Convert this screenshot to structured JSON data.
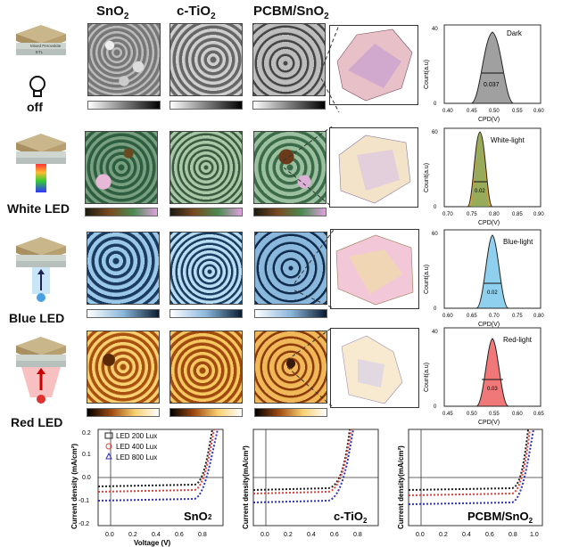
{
  "columns": [
    "SnO",
    "c-TiO",
    "PCBM/SnO"
  ],
  "columns_subscript": [
    "2",
    "2",
    "2"
  ],
  "rows": [
    {
      "label": "off",
      "hist_label": "Dark",
      "fwhm": "0.037",
      "xticks": [
        "0.40",
        "0.45",
        "0.50",
        "0.55",
        "0.60"
      ],
      "yticks": [
        "0",
        "10",
        "20",
        "30",
        "40"
      ],
      "color": "#9a9a9a"
    },
    {
      "label": "White LED",
      "hist_label": "White-light",
      "fwhm": "0.02",
      "xticks": [
        "0.70",
        "0.75",
        "0.80",
        "0.85",
        "0.90"
      ],
      "yticks": [
        "0",
        "10",
        "20",
        "30",
        "40",
        "50",
        "60"
      ],
      "color": "#d8a23a"
    },
    {
      "label": "Blue LED",
      "hist_label": "Blue-light",
      "fwhm": "0.02",
      "xticks": [
        "0.60",
        "0.65",
        "0.70",
        "0.75",
        "0.80"
      ],
      "yticks": [
        "0",
        "10",
        "20",
        "30",
        "40",
        "50",
        "60"
      ],
      "color": "#8fd0ee"
    },
    {
      "label": "Red LED",
      "hist_label": "Red-light",
      "fwhm": "0.03",
      "xticks": [
        "0.45",
        "0.50",
        "0.55",
        "0.60",
        "0.65"
      ],
      "yticks": [
        "0",
        "10",
        "20",
        "30",
        "40"
      ],
      "color": "#f07878"
    }
  ],
  "stack": {
    "top": "Mixed Perovskite",
    "mid": "ETL",
    "bottom": "FTO/Glass"
  },
  "hist_axis": {
    "xlabel": "CPD(V)",
    "ylabel": "Count(a.u)"
  },
  "jv": {
    "ylabel": "Current density (mA/cm²)",
    "ylabel_short": "Current density(mA/cm²)",
    "xlabel": "Voltage (V)",
    "xticks": [
      "0.0",
      "0.2",
      "0.4",
      "0.6",
      "0.8",
      "1.0"
    ],
    "yticks": [
      "0.2",
      "0.1",
      "0.0",
      "-0.1",
      "-0.2"
    ],
    "panels": [
      "SnO",
      "c-TiO",
      "PCBM/SnO"
    ],
    "legend": [
      "LED 200 Lux",
      "LED 400 Lux",
      "LED 800 Lux"
    ],
    "legend_colors": [
      "#222222",
      "#e0403a",
      "#3030c0"
    ]
  }
}
